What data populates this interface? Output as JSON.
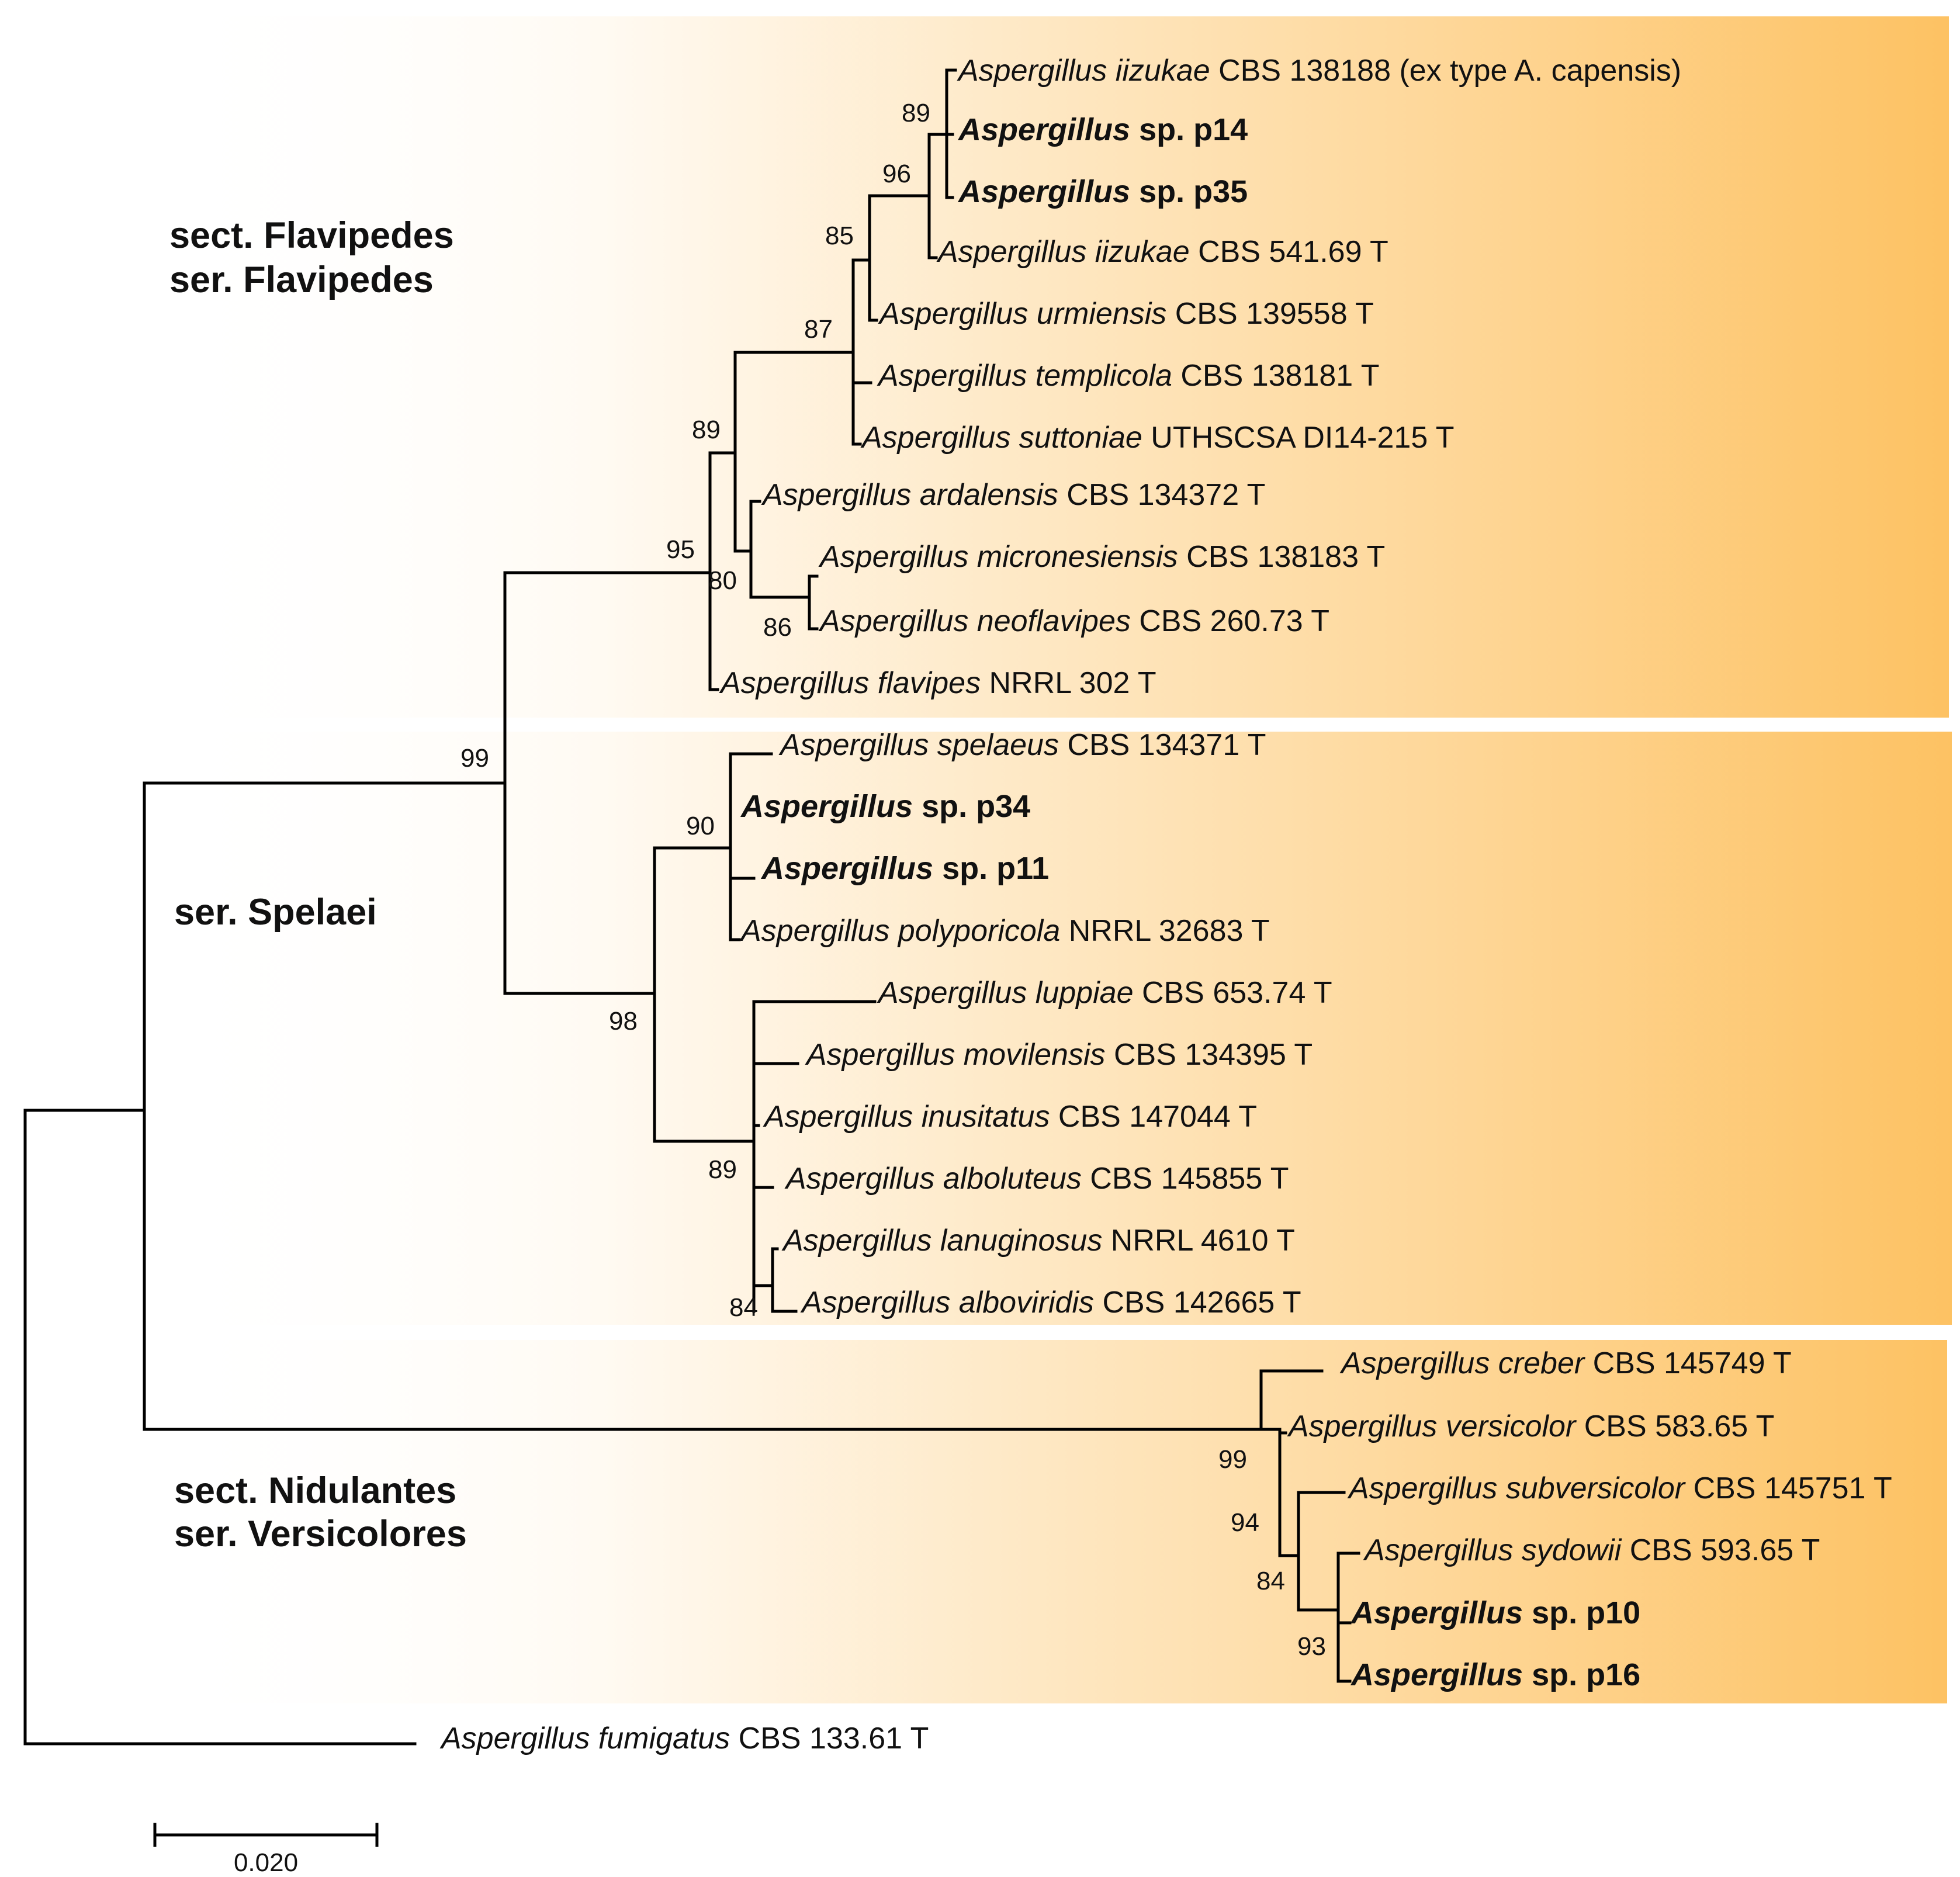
{
  "figure": {
    "type": "phylogenetic tree",
    "scale_bar": "0.020",
    "groups": [
      {
        "id": "flavipedes",
        "line1": "sect. Flavipedes",
        "line2": "ser. Flavipedes"
      },
      {
        "id": "spelaei",
        "line1": "ser. Spelaei",
        "line2": ""
      },
      {
        "id": "versicolores",
        "line1": "sect. Nidulantes",
        "line2": "ser. Versicolores"
      }
    ],
    "shade_colors": {
      "light": "#fffaf2",
      "dark": "#fdc263"
    },
    "taxa": [
      {
        "species": "Aspergillus iizukae",
        "strain": "CBS 138188 (ex type A. capensis)",
        "new": false
      },
      {
        "species": "Aspergillus",
        "strain": "sp. p14",
        "new": true
      },
      {
        "species": "Aspergillus",
        "strain": "sp. p35",
        "new": true
      },
      {
        "species": "Aspergillus iizukae",
        "strain": "CBS 541.69 T",
        "new": false
      },
      {
        "species": "Aspergillus urmiensis",
        "strain": "CBS 139558 T",
        "new": false
      },
      {
        "species": "Aspergillus templicola",
        "strain": "CBS 138181 T",
        "new": false
      },
      {
        "species": "Aspergillus suttoniae",
        "strain": "UTHSCSA DI14-215 T",
        "new": false
      },
      {
        "species": "Aspergillus ardalensis",
        "strain": "CBS 134372 T",
        "new": false
      },
      {
        "species": "Aspergillus micronesiensis",
        "strain": "CBS 138183 T",
        "new": false
      },
      {
        "species": "Aspergillus neoflavipes",
        "strain": "CBS 260.73 T",
        "new": false
      },
      {
        "species": "Aspergillus flavipes",
        "strain": "NRRL 302 T",
        "new": false
      },
      {
        "species": "Aspergillus spelaeus",
        "strain": "CBS 134371 T",
        "new": false
      },
      {
        "species": "Aspergillus",
        "strain": "sp. p34",
        "new": true
      },
      {
        "species": "Aspergillus",
        "strain": "sp. p11",
        "new": true
      },
      {
        "species": "Aspergillus polyporicola",
        "strain": "NRRL 32683 T",
        "new": false
      },
      {
        "species": "Aspergillus luppiae",
        "strain": "CBS 653.74 T",
        "new": false
      },
      {
        "species": "Aspergillus movilensis",
        "strain": "CBS 134395 T",
        "new": false
      },
      {
        "species": "Aspergillus inusitatus",
        "strain": "CBS 147044 T",
        "new": false
      },
      {
        "species": "Aspergillus alboluteus",
        "strain": "CBS 145855 T",
        "new": false
      },
      {
        "species": "Aspergillus lanuginosus",
        "strain": "NRRL 4610 T",
        "new": false
      },
      {
        "species": "Aspergillus alboviridis",
        "strain": "CBS 142665  T",
        "new": false
      },
      {
        "species": "Aspergillus creber",
        "strain": "CBS 145749 T",
        "new": false
      },
      {
        "species": "Aspergillus versicolor",
        "strain": "CBS 583.65 T",
        "new": false
      },
      {
        "species": "Aspergillus subversicolor",
        "strain": "CBS 145751 T",
        "new": false
      },
      {
        "species": "Aspergillus sydowii",
        "strain": "CBS 593.65 T",
        "new": false
      },
      {
        "species": "Aspergillus",
        "strain": "sp. p10",
        "new": true
      },
      {
        "species": "Aspergillus",
        "strain": "sp. p16",
        "new": true
      },
      {
        "species": "Aspergillus fumigatus",
        "strain": "CBS 133.61 T",
        "new": false
      }
    ],
    "bootstrap": [
      "89",
      "96",
      "85",
      "87",
      "89",
      "95",
      "80",
      "86",
      "99",
      "90",
      "98",
      "89",
      "84",
      "99",
      "94",
      "84",
      "93"
    ]
  }
}
